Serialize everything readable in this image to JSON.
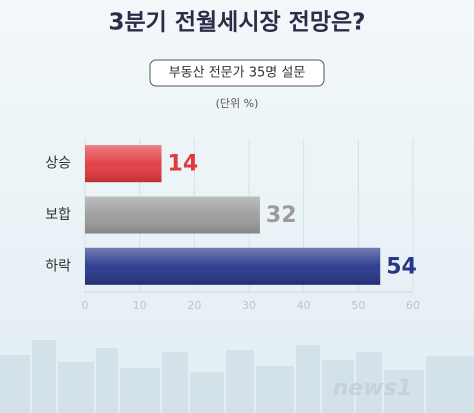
{
  "chart_data": {
    "type": "hbar",
    "title": "3분기 전월세시장 전망은?",
    "subtitle": "부동산 전문가 35명 설문",
    "unit_note": "(단위 %)",
    "categories": [
      "상승",
      "보합",
      "하락"
    ],
    "values": [
      14,
      32,
      54
    ],
    "colors": [
      "#e0393e",
      "#9b9b9b",
      "#27368a"
    ],
    "xlim": [
      0,
      60
    ],
    "xticks": [
      0,
      10,
      20,
      30,
      40,
      50,
      60
    ],
    "grid": true,
    "logo": "news1"
  }
}
